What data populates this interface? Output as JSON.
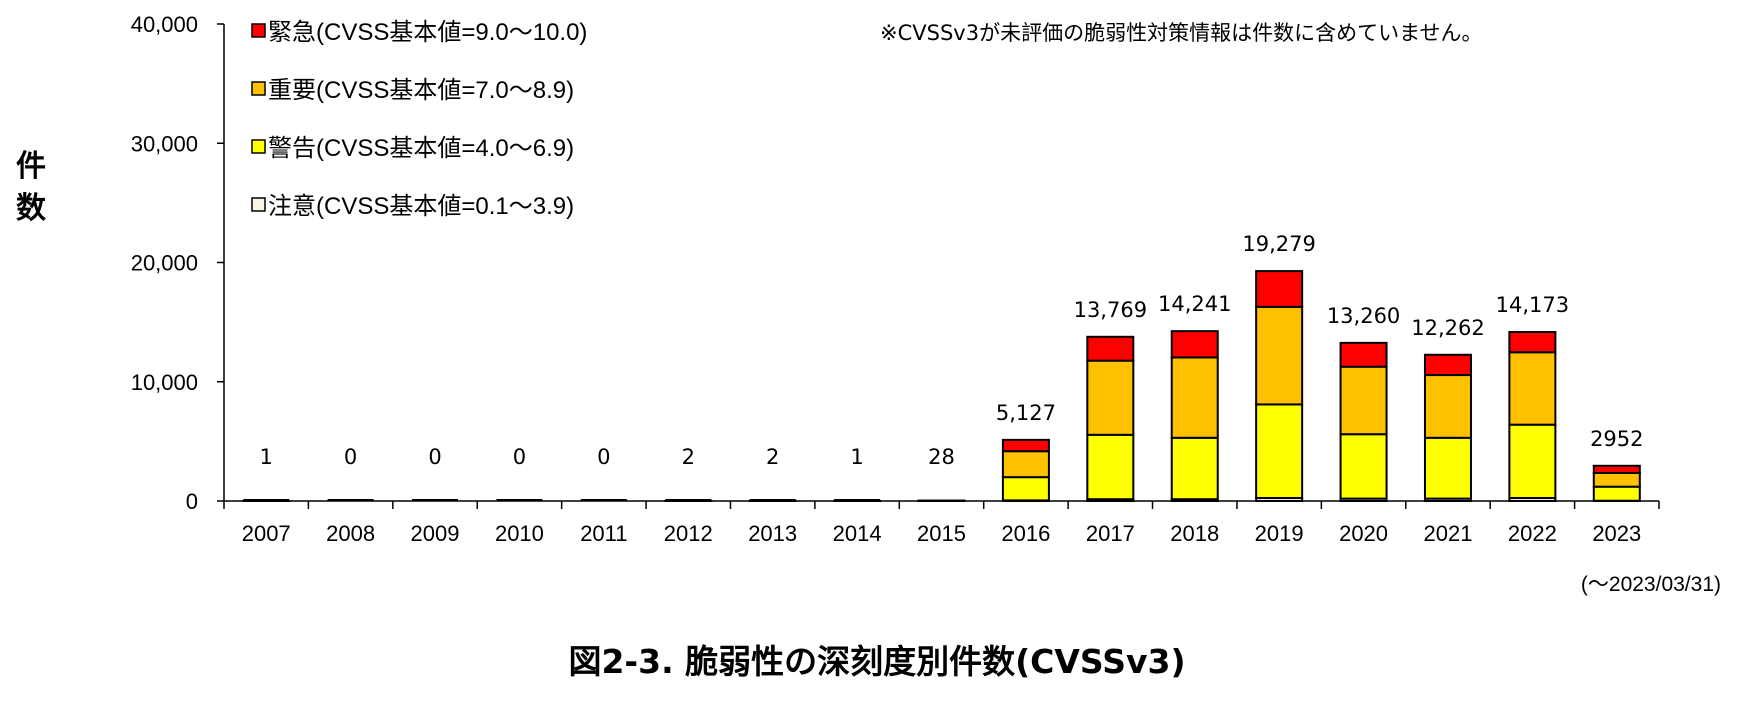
{
  "chart_data": {
    "type": "bar",
    "stacked": true,
    "title": "図2-3. 脆弱性の深刻度別件数(CVSSv3)",
    "ylabel": "件数",
    "xlabel": "",
    "ylim": [
      0,
      40000
    ],
    "yticks": [
      0,
      10000,
      20000,
      30000,
      40000
    ],
    "ytick_labels": [
      "0",
      "10,000",
      "20,000",
      "30,000",
      "40,000"
    ],
    "categories": [
      "2007",
      "2008",
      "2009",
      "2010",
      "2011",
      "2012",
      "2013",
      "2014",
      "2015",
      "2016",
      "2017",
      "2018",
      "2019",
      "2020",
      "2021",
      "2022",
      "2023"
    ],
    "series": [
      {
        "name": "注意(CVSS基本値=0.1～3.9)",
        "color": "#FDF3E4",
        "values": [
          0,
          0,
          0,
          0,
          0,
          0,
          0,
          0,
          1,
          50,
          150,
          150,
          250,
          200,
          200,
          250,
          20
        ]
      },
      {
        "name": "警告(CVSS基本値=4.0～6.9)",
        "color": "#FFFF00",
        "values": [
          1,
          0,
          0,
          0,
          0,
          1,
          1,
          1,
          15,
          1950,
          5400,
          5150,
          7850,
          5400,
          5100,
          6150,
          1180
        ]
      },
      {
        "name": "重要(CVSS基本値=7.0～8.9)",
        "color": "#FFC000",
        "values": [
          0,
          0,
          0,
          0,
          0,
          1,
          1,
          0,
          10,
          2177,
          6219,
          6741,
          8179,
          5660,
          5262,
          6073,
          1152
        ]
      },
      {
        "name": "緊急(CVSS基本値=9.0～10.0)",
        "color": "#FF0000",
        "values": [
          0,
          0,
          0,
          0,
          0,
          0,
          0,
          0,
          2,
          950,
          2000,
          2200,
          3000,
          2000,
          1700,
          1700,
          600
        ]
      }
    ],
    "totals": [
      1,
      0,
      0,
      0,
      0,
      2,
      2,
      1,
      28,
      5127,
      13769,
      14241,
      19279,
      13260,
      12262,
      14173,
      2952
    ],
    "total_labels": [
      "1",
      "0",
      "0",
      "0",
      "0",
      "2",
      "2",
      "1",
      "28",
      "5,127",
      "13,769",
      "14,241",
      "19,279",
      "13,260",
      "12,262",
      "14,173",
      "2952"
    ],
    "legend": {
      "placement": "top-left",
      "order": [
        "緊急(CVSS基本値=9.0～10.0)",
        "重要(CVSS基本値=7.0～8.9)",
        "警告(CVSS基本値=4.0～6.9)",
        "注意(CVSS基本値=0.1～3.9)"
      ]
    },
    "annotations": {
      "note": "※CVSSv3が未評価の脆弱性対策情報は件数に含めていません。",
      "range": "(～2023/03/31)"
    },
    "grid": false
  }
}
